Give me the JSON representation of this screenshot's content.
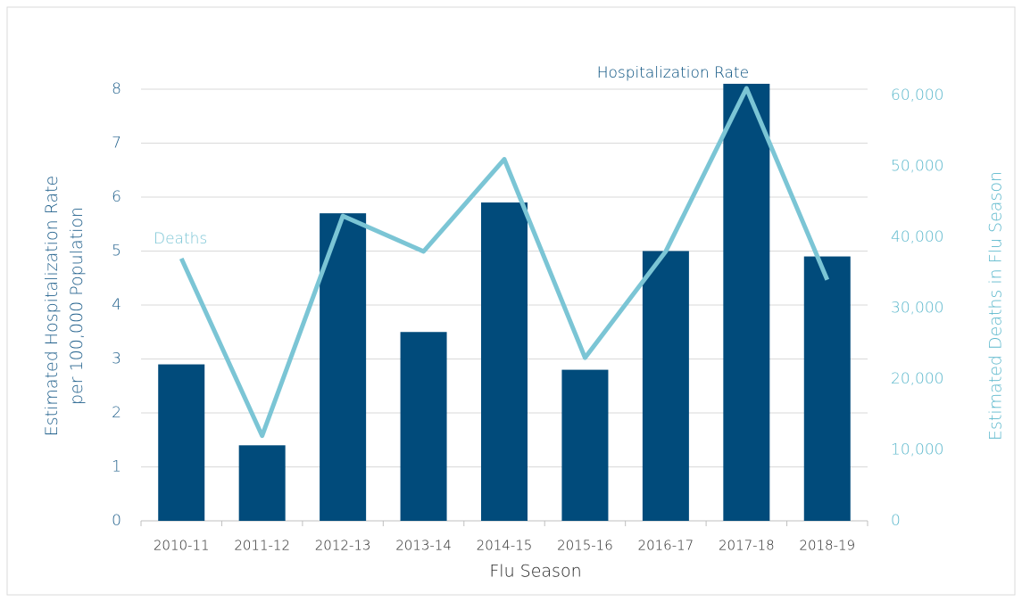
{
  "chart_data": {
    "type": "bar_line",
    "x_label": "Flu Season",
    "y_label": "Estimated Hospitalization Rate per 100,000 Population",
    "y2_label": "Estimated Deaths in Flu Season",
    "categories": [
      "2010-11",
      "2011-12",
      "2012-13",
      "2013-14",
      "2014-15",
      "2015-16",
      "2016-17",
      "2017-18",
      "2018-19"
    ],
    "series": [
      {
        "name": "Hospitalization Rate",
        "type": "bar",
        "color": "#014b7b",
        "values": [
          2.9,
          1.4,
          5.7,
          3.5,
          5.9,
          2.8,
          5.0,
          8.1,
          4.9
        ]
      },
      {
        "name": "Deaths",
        "type": "line",
        "axis": "y2",
        "color": "#7bc5d5",
        "values": [
          37000,
          12000,
          43000,
          38000,
          51000,
          23000,
          38000,
          61000,
          34000
        ]
      }
    ],
    "ylim": [
      0,
      8
    ],
    "yticks": [
      0,
      1,
      2,
      3,
      4,
      5,
      6,
      7,
      8
    ],
    "y2lim": [
      0,
      60000
    ],
    "y2ticks": [
      0,
      {
        "value": 10000,
        "label": "10,000"
      },
      {
        "value": 20000,
        "label": "20,000"
      },
      {
        "value": 30000,
        "label": "30,000"
      },
      {
        "value": 40000,
        "label": "40,000"
      },
      {
        "value": 50000,
        "label": "50,000"
      },
      {
        "value": 60000,
        "label": "60,000"
      }
    ],
    "grid": true
  }
}
